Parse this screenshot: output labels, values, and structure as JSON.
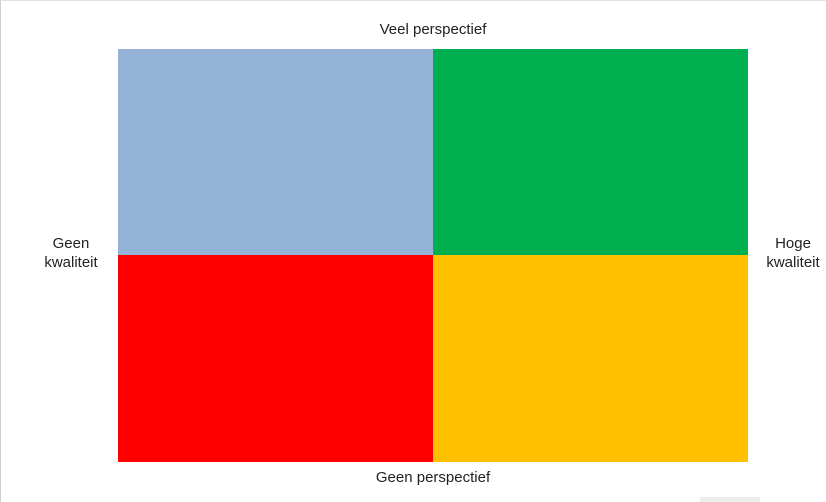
{
  "labels": {
    "top": "Veel perspectief",
    "bottom": "Geen perspectief",
    "left": "Geen kwaliteit",
    "right": "Hoge kwaliteit"
  },
  "quadrants": {
    "top_left": {
      "color": "#95b3d7"
    },
    "top_right": {
      "color": "#00b050"
    },
    "bottom_left": {
      "color": "#ff0000"
    },
    "bottom_right": {
      "color": "#ffc000"
    }
  }
}
